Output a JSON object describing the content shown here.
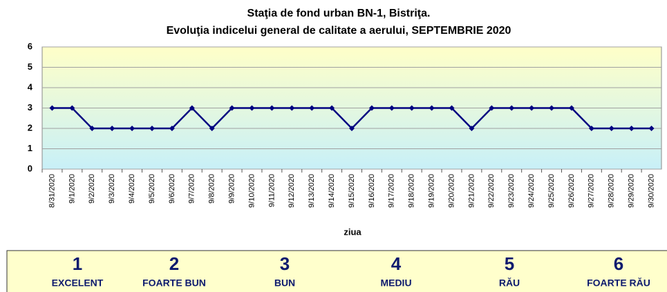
{
  "chart_data": {
    "type": "line",
    "title": "Staţia de fond urban BN-1, Bistriţa.",
    "subtitle": "Evoluţia indicelui general de calitate a aerului, SEPTEMBRIE 2020",
    "x_label": "ziua",
    "categories": [
      "8/31/2020",
      "9/1/2020",
      "9/2/2020",
      "9/3/2020",
      "9/4/2020",
      "9/5/2020",
      "9/6/2020",
      "9/7/2020",
      "9/8/2020",
      "9/9/2020",
      "9/10/2020",
      "9/11/2020",
      "9/12/2020",
      "9/13/2020",
      "9/14/2020",
      "9/15/2020",
      "9/16/2020",
      "9/17/2020",
      "9/18/2020",
      "9/19/2020",
      "9/20/2020",
      "9/21/2020",
      "9/22/2020",
      "9/23/2020",
      "9/24/2020",
      "9/25/2020",
      "9/26/2020",
      "9/27/2020",
      "9/28/2020",
      "9/29/2020",
      "9/30/2020"
    ],
    "values": [
      3,
      3,
      2,
      2,
      2,
      2,
      2,
      3,
      2,
      3,
      3,
      3,
      3,
      3,
      3,
      2,
      3,
      3,
      3,
      3,
      3,
      2,
      3,
      3,
      3,
      3,
      3,
      2,
      2,
      2,
      2
    ],
    "color": "#000080",
    "ylim": [
      0,
      6
    ],
    "yticks": [
      0,
      1,
      2,
      3,
      4,
      5,
      6
    ],
    "grid": true
  },
  "scale": [
    {
      "value": 1,
      "label": "EXCELENT"
    },
    {
      "value": 2,
      "label": "FOARTE BUN"
    },
    {
      "value": 3,
      "label": "BUN"
    },
    {
      "value": 4,
      "label": "MEDIU"
    },
    {
      "value": 5,
      "label": "RĂU"
    },
    {
      "value": 6,
      "label": "FOARTE RĂU"
    }
  ]
}
